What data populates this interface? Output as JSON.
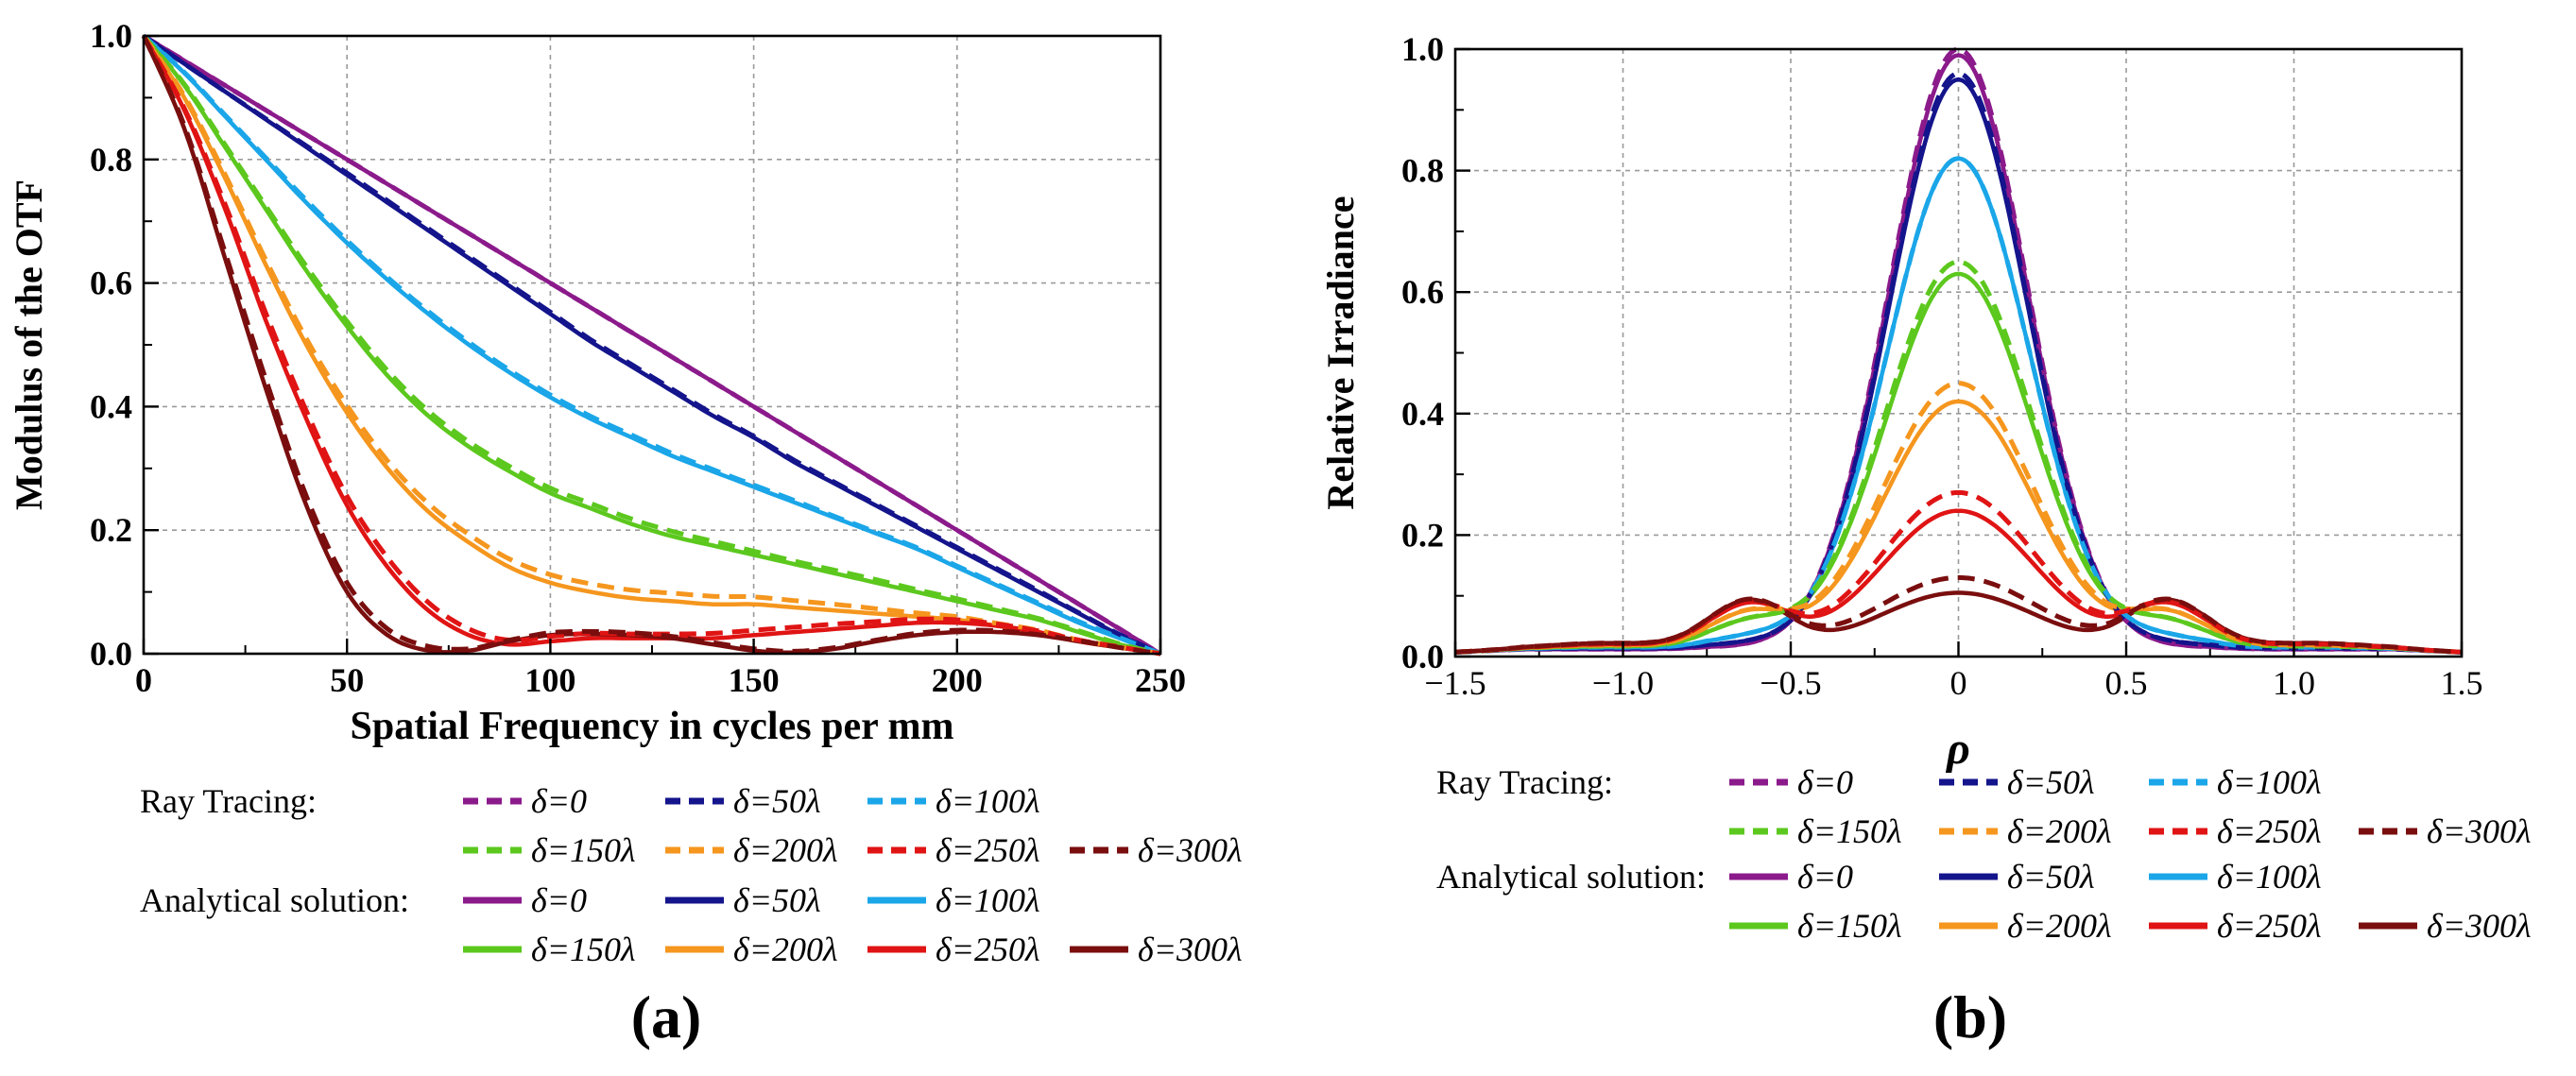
{
  "panels": [
    {
      "id": "a",
      "caption": "(a)",
      "chart_data": {
        "type": "line",
        "title": "",
        "xlabel": "Spatial Frequency in cycles per mm",
        "ylabel": "Modulus of the OTF",
        "xlim": [
          0,
          250
        ],
        "ylim": [
          0,
          1.0
        ],
        "xticks": [
          0,
          50,
          100,
          150,
          200,
          250
        ],
        "yticks": [
          0.0,
          0.2,
          0.4,
          0.6,
          0.8,
          1.0
        ],
        "xtick_labels": [
          "0",
          "50",
          "100",
          "150",
          "200",
          "250"
        ],
        "ytick_labels": [
          "0.0",
          "0.2",
          "0.4",
          "0.6",
          "0.8",
          "1.0"
        ],
        "grid": true,
        "x": [
          0,
          10,
          20,
          30,
          40,
          50,
          60,
          70,
          80,
          90,
          100,
          110,
          120,
          130,
          140,
          150,
          160,
          170,
          180,
          190,
          200,
          210,
          220,
          230,
          240,
          250
        ],
        "series": [
          {
            "name": "δ=0",
            "method": "Analytical solution",
            "color": "#8b1a8b",
            "values": [
              1.0,
              0.96,
              0.92,
              0.88,
              0.84,
              0.8,
              0.76,
              0.72,
              0.68,
              0.64,
              0.6,
              0.56,
              0.52,
              0.48,
              0.44,
              0.4,
              0.36,
              0.32,
              0.28,
              0.24,
              0.2,
              0.16,
              0.12,
              0.08,
              0.04,
              0.0
            ]
          },
          {
            "name": "δ=50λ",
            "method": "Analytical solution",
            "color": "#14148c",
            "values": [
              1.0,
              0.955,
              0.91,
              0.865,
              0.82,
              0.775,
              0.73,
              0.685,
              0.64,
              0.595,
              0.55,
              0.505,
              0.465,
              0.425,
              0.385,
              0.35,
              0.31,
              0.275,
              0.24,
              0.205,
              0.17,
              0.135,
              0.1,
              0.065,
              0.03,
              0.0
            ]
          },
          {
            "name": "δ=100λ",
            "method": "Analytical solution",
            "color": "#1aa6e8",
            "values": [
              1.0,
              0.94,
              0.87,
              0.8,
              0.73,
              0.665,
              0.605,
              0.55,
              0.5,
              0.455,
              0.415,
              0.38,
              0.35,
              0.32,
              0.295,
              0.27,
              0.245,
              0.22,
              0.195,
              0.17,
              0.14,
              0.11,
              0.08,
              0.05,
              0.025,
              0.0
            ]
          },
          {
            "name": "δ=150λ",
            "method": "Analytical solution",
            "color": "#5cc81e",
            "values": [
              1.0,
              0.92,
              0.82,
              0.72,
              0.62,
              0.53,
              0.45,
              0.385,
              0.335,
              0.295,
              0.26,
              0.235,
              0.21,
              0.19,
              0.175,
              0.16,
              0.145,
              0.13,
              0.115,
              0.1,
              0.085,
              0.07,
              0.055,
              0.035,
              0.015,
              0.0
            ]
          },
          {
            "name": "δ=200λ",
            "method": "Analytical solution",
            "color": "#f5961e",
            "values": [
              1.0,
              0.9,
              0.77,
              0.63,
              0.5,
              0.39,
              0.3,
              0.23,
              0.18,
              0.14,
              0.115,
              0.1,
              0.09,
              0.085,
              0.08,
              0.08,
              0.075,
              0.07,
              0.065,
              0.06,
              0.055,
              0.045,
              0.035,
              0.02,
              0.01,
              0.0
            ]
          },
          {
            "name": "δ=250λ",
            "method": "Analytical solution",
            "color": "#e01414",
            "values": [
              1.0,
              0.88,
              0.72,
              0.54,
              0.38,
              0.24,
              0.14,
              0.07,
              0.03,
              0.015,
              0.02,
              0.025,
              0.025,
              0.025,
              0.025,
              0.03,
              0.035,
              0.04,
              0.045,
              0.05,
              0.05,
              0.045,
              0.035,
              0.02,
              0.01,
              0.0
            ]
          },
          {
            "name": "δ=300λ",
            "method": "Analytical solution",
            "color": "#7a0e0e",
            "values": [
              1.0,
              0.85,
              0.64,
              0.43,
              0.24,
              0.1,
              0.03,
              0.005,
              0.005,
              0.02,
              0.03,
              0.032,
              0.03,
              0.025,
              0.015,
              0.005,
              0.002,
              0.008,
              0.02,
              0.03,
              0.035,
              0.035,
              0.03,
              0.02,
              0.01,
              0.0
            ]
          },
          {
            "name": "δ=0",
            "method": "Ray Tracing",
            "color": "#8b1a8b",
            "values": [
              1.0,
              0.96,
              0.92,
              0.88,
              0.84,
              0.8,
              0.76,
              0.72,
              0.68,
              0.64,
              0.6,
              0.56,
              0.52,
              0.48,
              0.44,
              0.4,
              0.36,
              0.32,
              0.28,
              0.24,
              0.2,
              0.16,
              0.12,
              0.08,
              0.04,
              0.0
            ]
          },
          {
            "name": "δ=50λ",
            "method": "Ray Tracing",
            "color": "#14148c",
            "values": [
              1.0,
              0.955,
              0.91,
              0.866,
              0.822,
              0.778,
              0.733,
              0.688,
              0.643,
              0.598,
              0.553,
              0.508,
              0.468,
              0.428,
              0.388,
              0.352,
              0.313,
              0.277,
              0.242,
              0.207,
              0.172,
              0.137,
              0.102,
              0.066,
              0.031,
              0.0
            ]
          },
          {
            "name": "δ=100λ",
            "method": "Ray Tracing",
            "color": "#1aa6e8",
            "values": [
              1.0,
              0.941,
              0.872,
              0.803,
              0.734,
              0.669,
              0.609,
              0.554,
              0.504,
              0.459,
              0.419,
              0.384,
              0.354,
              0.324,
              0.298,
              0.273,
              0.248,
              0.222,
              0.197,
              0.172,
              0.142,
              0.112,
              0.082,
              0.052,
              0.026,
              0.0
            ]
          },
          {
            "name": "δ=150λ",
            "method": "Ray Tracing",
            "color": "#5cc81e",
            "values": [
              1.0,
              0.922,
              0.824,
              0.725,
              0.627,
              0.538,
              0.458,
              0.393,
              0.343,
              0.303,
              0.268,
              0.243,
              0.218,
              0.198,
              0.182,
              0.166,
              0.15,
              0.135,
              0.12,
              0.104,
              0.089,
              0.073,
              0.057,
              0.037,
              0.016,
              0.0
            ]
          },
          {
            "name": "δ=200λ",
            "method": "Ray Tracing",
            "color": "#f5961e",
            "values": [
              1.0,
              0.903,
              0.776,
              0.638,
              0.51,
              0.402,
              0.312,
              0.243,
              0.193,
              0.153,
              0.128,
              0.113,
              0.103,
              0.098,
              0.093,
              0.092,
              0.086,
              0.08,
              0.073,
              0.066,
              0.06,
              0.049,
              0.038,
              0.022,
              0.011,
              0.0
            ]
          },
          {
            "name": "δ=250λ",
            "method": "Ray Tracing",
            "color": "#e01414",
            "values": [
              1.0,
              0.883,
              0.728,
              0.552,
              0.393,
              0.255,
              0.155,
              0.083,
              0.04,
              0.022,
              0.028,
              0.033,
              0.032,
              0.032,
              0.033,
              0.038,
              0.043,
              0.048,
              0.052,
              0.056,
              0.055,
              0.048,
              0.037,
              0.022,
              0.011,
              0.0
            ]
          },
          {
            "name": "δ=300λ",
            "method": "Ray Tracing",
            "color": "#7a0e0e",
            "values": [
              1.0,
              0.855,
              0.65,
              0.445,
              0.255,
              0.115,
              0.04,
              0.012,
              0.008,
              0.022,
              0.034,
              0.036,
              0.034,
              0.028,
              0.018,
              0.008,
              0.004,
              0.01,
              0.022,
              0.033,
              0.038,
              0.037,
              0.031,
              0.021,
              0.01,
              0.0
            ]
          }
        ],
        "legend": {
          "ray_tracing_label": "Ray Tracing:",
          "analytical_label": "Analytical solution:",
          "entries": [
            "δ=0",
            "δ=50λ",
            "δ=100λ",
            "δ=150λ",
            "δ=200λ",
            "δ=250λ",
            "δ=300λ"
          ]
        }
      }
    },
    {
      "id": "b",
      "caption": "(b)",
      "chart_data": {
        "type": "line",
        "title": "",
        "xlabel": "ρ",
        "ylabel": "Relative Irradiance",
        "xlim": [
          -1.5,
          1.5
        ],
        "ylim": [
          0,
          1.0
        ],
        "xticks": [
          -1.5,
          -1.0,
          -0.5,
          0,
          0.5,
          1.0,
          1.5
        ],
        "yticks": [
          0.0,
          0.2,
          0.4,
          0.6,
          0.8,
          1.0
        ],
        "xtick_labels": [
          "−1.5",
          "−1.0",
          "−0.5",
          "0",
          "0.5",
          "1.0",
          "1.5"
        ],
        "ytick_labels": [
          "0.0",
          "0.2",
          "0.4",
          "0.6",
          "0.8",
          "1.0"
        ],
        "grid": true,
        "series": [
          {
            "name": "δ=0",
            "method": "Analytical solution",
            "color": "#8b1a8b",
            "peak": 0.99
          },
          {
            "name": "δ=50λ",
            "method": "Analytical solution",
            "color": "#14148c",
            "peak": 0.95
          },
          {
            "name": "δ=100λ",
            "method": "Analytical solution",
            "color": "#1aa6e8",
            "peak": 0.82
          },
          {
            "name": "δ=150λ",
            "method": "Analytical solution",
            "color": "#5cc81e",
            "peak": 0.63
          },
          {
            "name": "δ=200λ",
            "method": "Analytical solution",
            "color": "#f5961e",
            "peak": 0.42
          },
          {
            "name": "δ=250λ",
            "method": "Analytical solution",
            "color": "#e01414",
            "peak": 0.24
          },
          {
            "name": "δ=300λ",
            "method": "Analytical solution",
            "color": "#7a0e0e",
            "peak": 0.105
          },
          {
            "name": "δ=0",
            "method": "Ray Tracing",
            "color": "#8b1a8b",
            "peak": 1.0
          },
          {
            "name": "δ=50λ",
            "method": "Ray Tracing",
            "color": "#14148c",
            "peak": 0.96
          },
          {
            "name": "δ=100λ",
            "method": "Ray Tracing",
            "color": "#1aa6e8",
            "peak": 0.82
          },
          {
            "name": "δ=150λ",
            "method": "Ray Tracing",
            "color": "#5cc81e",
            "peak": 0.65
          },
          {
            "name": "δ=200λ",
            "method": "Ray Tracing",
            "color": "#f5961e",
            "peak": 0.45
          },
          {
            "name": "δ=250λ",
            "method": "Ray Tracing",
            "color": "#e01414",
            "peak": 0.27
          },
          {
            "name": "δ=300λ",
            "method": "Ray Tracing",
            "color": "#7a0e0e",
            "peak": 0.13
          }
        ],
        "legend": {
          "ray_tracing_label": "Ray Tracing:",
          "analytical_label": "Analytical solution:",
          "entries": [
            "δ=0",
            "δ=50λ",
            "δ=100λ",
            "δ=150λ",
            "δ=200λ",
            "δ=250λ",
            "δ=300λ"
          ]
        }
      }
    }
  ]
}
